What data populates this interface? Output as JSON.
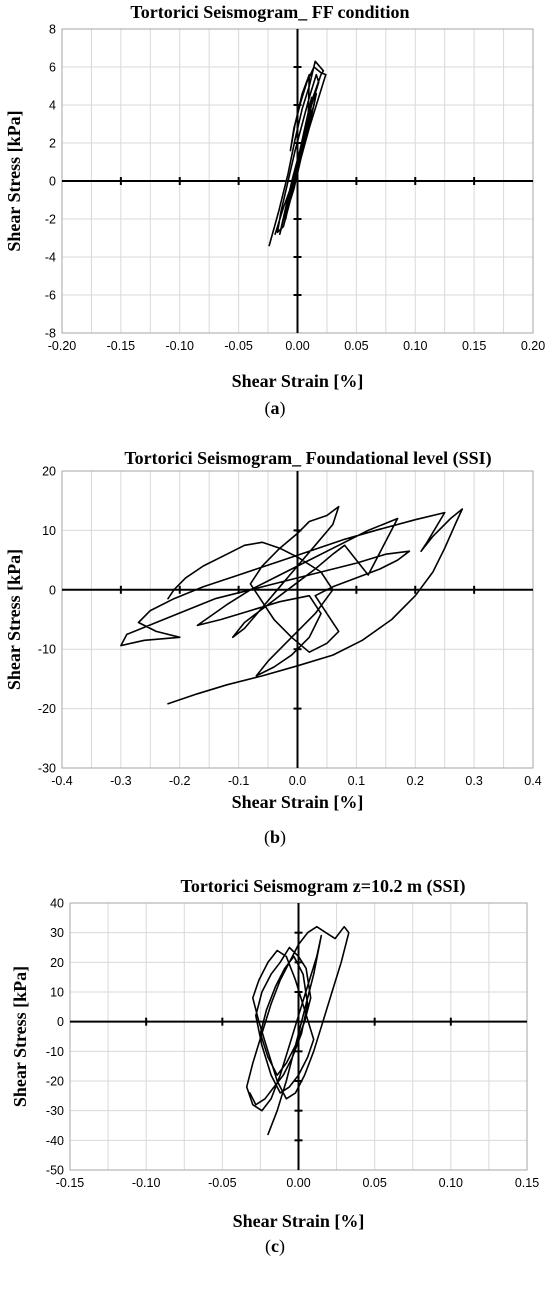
{
  "chart_data": [
    {
      "type": "line",
      "title": "Tortorici Seismogram_  FF condition",
      "xlabel": "Shear Strain [%]",
      "ylabel": "Shear Stress [kPa]",
      "caption": "a",
      "grid": true,
      "xlim": [
        -0.2,
        0.2
      ],
      "ylim": [
        -8,
        8
      ],
      "xticks": [
        -0.2,
        -0.15,
        -0.1,
        -0.05,
        0,
        0.05,
        0.1,
        0.15,
        0.2
      ],
      "yticks": [
        -8,
        -6,
        -4,
        -2,
        0,
        2,
        4,
        6,
        8
      ],
      "xtick_labels": [
        "-0.20",
        "-0.15",
        "-0.10",
        "-0.05",
        "0.00",
        "0.05",
        "0.10",
        "0.15",
        "0.20"
      ],
      "ytick_labels": [
        "-8",
        "-6",
        "-4",
        "-2",
        "0",
        "2",
        "4",
        "6",
        "8"
      ],
      "series": [
        {
          "x": [
            -0.024,
            -0.016,
            -0.008,
            -0.002,
            0.004,
            0.01,
            0.015,
            0.022,
            0.02,
            0.012,
            0.006,
            0.0,
            -0.006,
            -0.012,
            -0.017,
            -0.014,
            -0.008,
            -0.002,
            0.004,
            0.01,
            0.016,
            0.018,
            0.012,
            0.006,
            0.0,
            -0.005,
            -0.011,
            -0.015,
            -0.01,
            -0.004,
            0.002,
            0.007,
            0.012,
            0.011,
            0.005,
            -0.001,
            -0.006,
            -0.01,
            -0.006,
            0.0,
            0.005,
            0.009,
            0.01,
            0.004,
            -0.002,
            -0.006,
            -0.003,
            0.003,
            0.008,
            0.014,
            0.02,
            0.024,
            0.018,
            0.01,
            0.003,
            -0.003,
            -0.009,
            -0.013,
            -0.008,
            -0.002,
            0.004,
            0.011,
            0.016,
            0.014,
            0.007,
            0.0,
            -0.006,
            -0.012,
            -0.016,
            -0.019
          ],
          "y": [
            -3.4,
            -1.6,
            0.4,
            2.2,
            3.8,
            5.0,
            6.3,
            5.8,
            5.6,
            4.2,
            2.4,
            0.6,
            -1.0,
            -2.4,
            -2.7,
            -1.6,
            0.0,
            1.6,
            3.0,
            4.4,
            5.6,
            5.2,
            4.0,
            2.6,
            1.0,
            -0.4,
            -1.8,
            -2.8,
            -1.4,
            0.2,
            1.6,
            3.0,
            4.4,
            3.6,
            2.2,
            0.6,
            -0.8,
            -2.0,
            -0.8,
            0.8,
            2.2,
            3.2,
            5.6,
            4.6,
            3.0,
            1.6,
            2.8,
            4.2,
            5.2,
            6.0,
            5.7,
            5.6,
            4.4,
            2.8,
            1.2,
            -0.4,
            -1.6,
            -2.2,
            -1.2,
            0.2,
            1.6,
            3.2,
            4.6,
            4.0,
            2.6,
            1.0,
            -0.4,
            -1.4,
            -2.2,
            -2.8
          ]
        }
      ]
    },
    {
      "type": "line",
      "title": "Tortorici Seismogram_  Foundational level (SSI)",
      "xlabel": "Shear Strain [%]",
      "ylabel": "Shear Stress [kPa]",
      "caption": "b",
      "grid": true,
      "xlim": [
        -0.4,
        0.4
      ],
      "ylim": [
        -30,
        20
      ],
      "xticks": [
        -0.4,
        -0.3,
        -0.2,
        -0.1,
        0,
        0.1,
        0.2,
        0.3,
        0.4
      ],
      "yticks": [
        -30,
        -20,
        -10,
        0,
        10,
        20
      ],
      "xtick_labels": [
        "-0.4",
        "-0.3",
        "-0.2",
        "-0.1",
        "0.0",
        "0.1",
        "0.2",
        "0.3",
        "0.4"
      ],
      "ytick_labels": [
        "-30",
        "-20",
        "-10",
        "0",
        "10",
        "20"
      ],
      "series": [
        {
          "x": [
            -0.22,
            -0.17,
            -0.12,
            -0.06,
            0.0,
            0.06,
            0.11,
            0.16,
            0.2,
            0.23,
            0.25,
            0.27,
            0.28,
            0.26,
            0.23,
            0.21,
            0.22,
            0.25,
            0.2,
            0.14,
            0.08,
            0.02,
            -0.04,
            -0.1,
            -0.16,
            -0.21,
            -0.25,
            -0.27,
            -0.24,
            -0.2,
            -0.26,
            -0.3,
            -0.29,
            -0.24,
            -0.19,
            -0.14,
            -0.08,
            -0.02,
            0.04,
            0.1,
            0.15,
            0.19,
            0.17,
            0.14,
            0.1,
            0.06,
            0.03,
            0.05,
            0.07,
            0.05,
            0.02,
            -0.01,
            -0.04,
            -0.06,
            -0.08,
            -0.06,
            -0.03,
            0.0,
            0.02,
            0.05,
            0.07,
            0.06,
            0.03,
            0.0,
            -0.03,
            -0.06,
            -0.09,
            -0.11,
            -0.09,
            -0.05,
            -0.01,
            0.03,
            0.06,
            0.08,
            0.1,
            0.12,
            0.17,
            0.12,
            0.07,
            0.02,
            -0.03,
            -0.08,
            -0.12,
            -0.17,
            -0.13,
            -0.08,
            -0.03,
            0.02,
            0.04,
            0.02,
            -0.01,
            -0.04,
            -0.07,
            -0.05,
            -0.01,
            0.03,
            0.06,
            0.04,
            0.0,
            -0.03,
            -0.06,
            -0.09,
            -0.12,
            -0.16,
            -0.19,
            -0.21,
            -0.22
          ],
          "y": [
            -19.2,
            -17.5,
            -16.0,
            -14.5,
            -12.8,
            -11.0,
            -8.5,
            -5.0,
            -1.0,
            3.0,
            7.0,
            11.5,
            13.6,
            12.0,
            9.0,
            6.5,
            8.0,
            13.0,
            11.8,
            10.2,
            8.5,
            6.5,
            4.5,
            2.5,
            0.5,
            -1.5,
            -3.5,
            -5.5,
            -7.0,
            -8.0,
            -8.5,
            -9.4,
            -7.5,
            -5.5,
            -3.5,
            -1.5,
            0.0,
            1.5,
            3.0,
            4.5,
            6.0,
            6.5,
            5.0,
            3.5,
            2.0,
            0.5,
            -1.0,
            -4.0,
            -7.0,
            -9.0,
            -10.5,
            -8.0,
            -5.0,
            -2.0,
            1.0,
            4.0,
            7.0,
            9.5,
            11.5,
            12.5,
            14.0,
            11.0,
            7.5,
            4.0,
            0.5,
            -3.0,
            -6.5,
            -8.0,
            -5.5,
            -2.5,
            0.5,
            3.5,
            6.0,
            7.5,
            5.0,
            2.5,
            12.0,
            10.0,
            7.5,
            5.0,
            2.5,
            0.0,
            -2.5,
            -6.0,
            -5.0,
            -3.5,
            -2.0,
            -1.0,
            -4.0,
            -8.0,
            -11.0,
            -13.0,
            -14.5,
            -12.0,
            -8.0,
            -4.0,
            0.0,
            3.0,
            5.5,
            7.0,
            8.0,
            7.5,
            6.0,
            4.0,
            2.0,
            0.0,
            -1.5
          ]
        }
      ]
    },
    {
      "type": "line",
      "title": "Tortorici Seismogram z=10.2 m (SSI)",
      "xlabel": "Shear Strain [%]",
      "ylabel": "Shear Stress [kPa]",
      "caption": "c",
      "grid": true,
      "xlim": [
        -0.15,
        0.15
      ],
      "ylim": [
        -50,
        40
      ],
      "xticks": [
        -0.15,
        -0.1,
        -0.05,
        0,
        0.05,
        0.1,
        0.15
      ],
      "yticks": [
        -50,
        -40,
        -30,
        -20,
        -10,
        0,
        10,
        20,
        30,
        40
      ],
      "xtick_labels": [
        "-0.15",
        "-0.10",
        "-0.05",
        "0.00",
        "0.05",
        "0.10",
        "0.15"
      ],
      "ytick_labels": [
        "-50",
        "-40",
        "-30",
        "-20",
        "-10",
        "0",
        "10",
        "20",
        "30",
        "40"
      ],
      "series": [
        {
          "x": [
            -0.02,
            -0.014,
            -0.008,
            -0.002,
            0.004,
            0.01,
            0.015,
            0.012,
            0.006,
            0.0,
            -0.006,
            -0.012,
            -0.018,
            -0.024,
            -0.03,
            -0.034,
            -0.03,
            -0.024,
            -0.018,
            -0.012,
            -0.006,
            0.0,
            0.006,
            0.012,
            0.018,
            0.024,
            0.03,
            0.033,
            0.028,
            0.022,
            0.016,
            0.01,
            0.004,
            -0.002,
            -0.008,
            -0.014,
            -0.02,
            -0.026,
            -0.03,
            -0.026,
            -0.02,
            -0.014,
            -0.008,
            -0.002,
            0.004,
            0.01,
            0.006,
            0.0,
            -0.006,
            -0.012,
            -0.018,
            -0.024,
            -0.028,
            -0.024,
            -0.018,
            -0.012,
            -0.006,
            0.0,
            0.005,
            0.008,
            0.004,
            -0.002,
            -0.008,
            -0.014,
            -0.02,
            -0.025,
            -0.021,
            -0.015,
            -0.009,
            -0.003,
            0.003,
            0.006,
            0.002,
            -0.004,
            -0.01,
            -0.016,
            -0.022,
            -0.028,
            -0.032
          ],
          "y": [
            -38.0,
            -30.0,
            -20.0,
            -8.0,
            4.0,
            16.0,
            29.0,
            22.0,
            12.0,
            2.0,
            -8.0,
            -18.0,
            -26.0,
            -30.0,
            -28.0,
            -22.0,
            -14.0,
            -4.0,
            6.0,
            14.0,
            20.0,
            26.0,
            30.0,
            32.0,
            30.0,
            28.0,
            32.0,
            30.0,
            20.0,
            10.0,
            0.0,
            -10.0,
            -18.0,
            -24.0,
            -26.0,
            -20.0,
            -10.0,
            0.0,
            8.0,
            14.0,
            20.0,
            24.0,
            22.0,
            14.0,
            4.0,
            -6.0,
            -12.0,
            -18.0,
            -22.0,
            -24.0,
            -18.0,
            -8.0,
            2.0,
            10.0,
            16.0,
            20.0,
            25.0,
            22.0,
            18.0,
            8.0,
            0.0,
            -8.0,
            -14.0,
            -18.0,
            -12.0,
            -4.0,
            4.0,
            12.0,
            18.0,
            22.0,
            16.0,
            6.0,
            -4.0,
            -12.0,
            -18.0,
            -22.0,
            -26.0,
            -28.0,
            -24.0
          ]
        }
      ]
    }
  ]
}
